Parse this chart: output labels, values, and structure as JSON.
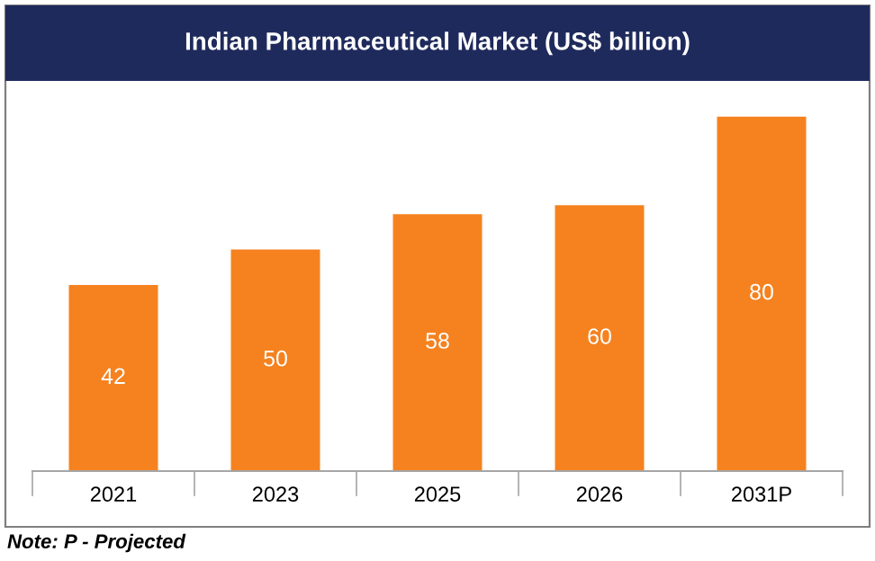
{
  "chart_data": {
    "type": "bar",
    "title": "Indian Pharmaceutical Market (US$ billion)",
    "categories": [
      "2021",
      "2023",
      "2025",
      "2026",
      "2031P"
    ],
    "values": [
      42,
      50,
      58,
      60,
      80
    ],
    "color": "#f5821f",
    "data_labels": true,
    "tick_labels": "x",
    "annotations": [
      "Note: P - Projected"
    ]
  }
}
